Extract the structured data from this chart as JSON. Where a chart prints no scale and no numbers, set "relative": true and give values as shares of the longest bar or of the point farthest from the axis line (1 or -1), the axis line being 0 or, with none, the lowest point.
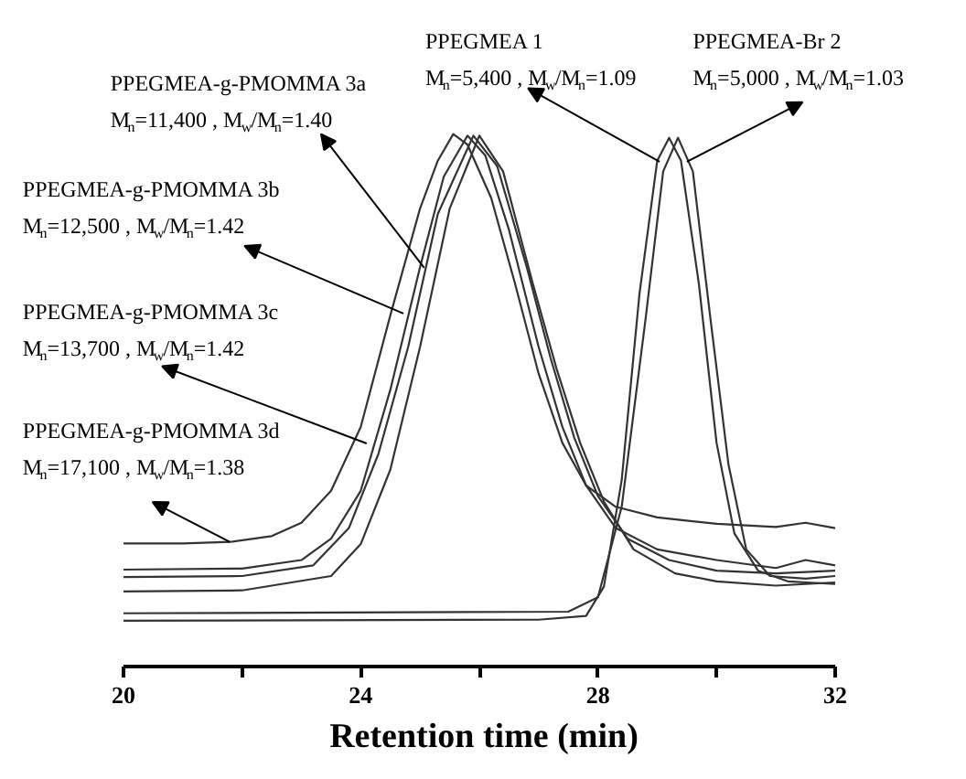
{
  "chart_data": {
    "type": "line",
    "relative": true,
    "xlabel": "Retention time (min)",
    "xlim": [
      20,
      32
    ],
    "xticks": [
      20,
      {
        "value": 22,
        "label": null
      },
      24,
      {
        "value": 26,
        "label": null
      },
      28,
      {
        "value": 30,
        "label": null
      },
      32
    ],
    "grid": false,
    "series": [
      {
        "color": "#333333",
        "x": [
          20,
          21,
          21.8,
          22.5,
          23,
          23.5,
          24,
          24.5,
          25,
          25.3,
          25.56,
          25.8,
          26.2,
          26.6,
          27,
          27.4,
          27.8,
          28.3,
          29,
          30,
          31,
          31.5,
          32
        ],
        "values": [
          0.231,
          0.231,
          0.234,
          0.245,
          0.27,
          0.33,
          0.45,
          0.66,
          0.86,
          0.95,
          1.0,
          0.98,
          0.88,
          0.72,
          0.55,
          0.42,
          0.34,
          0.3,
          0.28,
          0.268,
          0.262,
          0.27,
          0.26
        ]
      },
      {
        "color": "#333333",
        "x": [
          20,
          22,
          23,
          23.5,
          24,
          24.5,
          25,
          25.4,
          25.8,
          26.1,
          26.5,
          27,
          27.4,
          27.8,
          28.3,
          29,
          30,
          31,
          31.5,
          32
        ],
        "values": [
          0.182,
          0.184,
          0.2,
          0.24,
          0.33,
          0.52,
          0.75,
          0.92,
          0.997,
          0.96,
          0.82,
          0.6,
          0.45,
          0.34,
          0.26,
          0.22,
          0.2,
          0.185,
          0.2,
          0.19
        ]
      },
      {
        "color": "#333333",
        "x": [
          20,
          22,
          23.2,
          23.8,
          24.3,
          24.8,
          25.3,
          25.9,
          26.3,
          26.8,
          27.2,
          27.6,
          28,
          28.5,
          29.2,
          30,
          31,
          32
        ],
        "values": [
          0.168,
          0.17,
          0.19,
          0.26,
          0.4,
          0.6,
          0.85,
          0.997,
          0.94,
          0.75,
          0.58,
          0.43,
          0.32,
          0.24,
          0.2,
          0.18,
          0.175,
          0.18
        ]
      },
      {
        "color": "#333333",
        "x": [
          20,
          22,
          23.5,
          24,
          24.5,
          25,
          25.5,
          26,
          26.4,
          26.9,
          27.3,
          27.7,
          28.1,
          28.6,
          29.3,
          30,
          31,
          32
        ],
        "values": [
          0.141,
          0.143,
          0.17,
          0.23,
          0.37,
          0.6,
          0.86,
          0.997,
          0.93,
          0.72,
          0.56,
          0.42,
          0.31,
          0.22,
          0.175,
          0.16,
          0.152,
          0.158
        ]
      },
      {
        "color": "#333333",
        "x": [
          20,
          27,
          27.8,
          28.1,
          28.4,
          28.7,
          29,
          29.2,
          29.4,
          29.7,
          30,
          30.3,
          30.7,
          31.2,
          32
        ],
        "values": [
          0.086,
          0.088,
          0.095,
          0.15,
          0.35,
          0.7,
          0.95,
          0.993,
          0.95,
          0.72,
          0.42,
          0.25,
          0.18,
          0.16,
          0.155
        ]
      },
      {
        "color": "#333333",
        "x": [
          20,
          27.5,
          28,
          28.4,
          28.8,
          29.1,
          29.35,
          29.6,
          29.9,
          30.2,
          30.5,
          30.9,
          31.5,
          32
        ],
        "values": [
          0.1,
          0.103,
          0.13,
          0.3,
          0.65,
          0.93,
          0.993,
          0.93,
          0.65,
          0.38,
          0.22,
          0.17,
          0.165,
          0.17
        ]
      }
    ],
    "annotations": [
      "PPEGMEA-g-PMOMMA 3a",
      {
        "text": "M$_{n}$=11,400 , M$_{w}$/M$_{n}$=1.40",
        "x": 25.07,
        "y": 0.749
      },
      "PPEGMEA-g-PMOMMA 3b",
      {
        "text": "M$_{n}$=12,500 , M$_{w}$/M$_{n}$=1.42",
        "x": 24.72,
        "y": 0.663
      },
      "PPEGMEA-g-PMOMMA 3c",
      {
        "text": "M$_{n}$=13,700 , M$_{w}$/M$_{n}$=1.42",
        "x": 24.1,
        "y": 0.419
      },
      "PPEGMEA-g-PMOMMA 3d",
      {
        "text": "M$_{n}$=17,100 , M$_{w}$/M$_{n}$=1.38",
        "x": 21.79,
        "y": 0.234
      },
      "PPEGMEA 1",
      {
        "text": "M$_{n}$=5,400 , M$_{w}$/M$_{n}$=1.09",
        "x": 29.04,
        "y": 0.948
      },
      "PPEGMEA-Br 2",
      {
        "text": "M$_{n}$=5,000 , M$_{w}$/M$_{n}$=1.03",
        "x": 29.5,
        "y": 0.948
      }
    ]
  }
}
